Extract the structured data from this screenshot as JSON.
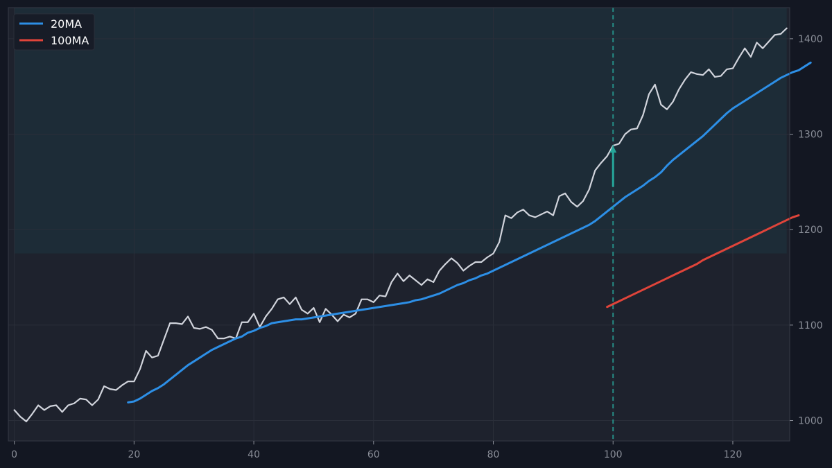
{
  "chart_data": {
    "type": "line",
    "title": "",
    "xlabel": "",
    "ylabel": "",
    "xlim": [
      -1,
      129.5
    ],
    "ylim": [
      978.6,
      1432.6
    ],
    "x_ticks": [
      0,
      20,
      40,
      60,
      80,
      100,
      120
    ],
    "y_ticks": [
      1000,
      1100,
      1200,
      1300,
      1400
    ],
    "y_axis_side": "right",
    "grid": true,
    "legend": {
      "position": "top-left",
      "entries": [
        "20MA",
        "100MA"
      ]
    },
    "colors": {
      "background": "#131722",
      "plot_background": "#1e222d",
      "grid": "#2a2e39",
      "price": "#d1d4dc",
      "ma20": "#2d8fe6",
      "ma100": "#e0443a",
      "crossover_marker": "#26a69a",
      "shaded_zone": "#1c3a44"
    },
    "shaded_region": {
      "x": [
        0,
        129
      ],
      "y_from": 1175,
      "y_to": 1432.6
    },
    "vertical_marker": {
      "x": 100,
      "style": "dashed"
    },
    "arrow": {
      "x": 100,
      "y_from": 1245,
      "y_to": 1288
    },
    "series": [
      {
        "name": "",
        "role": "price",
        "x_start": 0,
        "values": [
          1011,
          1004,
          999,
          1007,
          1016,
          1011,
          1015,
          1016,
          1009,
          1016,
          1018,
          1023,
          1022,
          1016,
          1022,
          1036,
          1033,
          1032,
          1037,
          1041,
          1041,
          1054,
          1073,
          1066,
          1068,
          1085,
          1102,
          1102,
          1101,
          1109,
          1097,
          1096,
          1098,
          1095,
          1086,
          1086,
          1088,
          1086,
          1103,
          1103,
          1112,
          1098,
          1109,
          1117,
          1127,
          1129,
          1122,
          1129,
          1116,
          1112,
          1118,
          1103,
          1117,
          1111,
          1104,
          1111,
          1108,
          1112,
          1127,
          1127,
          1124,
          1131,
          1130,
          1145,
          1154,
          1146,
          1152,
          1147,
          1142,
          1148,
          1145,
          1157,
          1164,
          1170,
          1165,
          1157,
          1162,
          1166,
          1166,
          1171,
          1175,
          1187,
          1215,
          1212,
          1218,
          1221,
          1215,
          1213,
          1216,
          1219,
          1215,
          1235,
          1238,
          1229,
          1224,
          1230,
          1242,
          1262,
          1270,
          1277,
          1288,
          1290,
          1300,
          1305,
          1306,
          1320,
          1342,
          1352,
          1331,
          1326,
          1334,
          1347,
          1357,
          1365,
          1363,
          1362,
          1368,
          1360,
          1361,
          1368,
          1369,
          1380,
          1390,
          1381,
          1396,
          1390,
          1397,
          1404,
          1405,
          1411
        ]
      },
      {
        "name": "20MA",
        "role": "ma20",
        "x_start": 19,
        "values": [
          1019,
          1020,
          1023,
          1027,
          1031,
          1034,
          1038,
          1043,
          1048,
          1053,
          1058,
          1062,
          1066,
          1070,
          1074,
          1077,
          1080,
          1083,
          1086,
          1088,
          1092,
          1094,
          1097,
          1099,
          1102,
          1103,
          1104,
          1105,
          1106,
          1106,
          1107,
          1108,
          1109,
          1110,
          1111,
          1112,
          1113,
          1114,
          1115,
          1116,
          1117,
          1118,
          1119,
          1120,
          1121,
          1122,
          1123,
          1124,
          1126,
          1127,
          1129,
          1131,
          1133,
          1136,
          1139,
          1142,
          1144,
          1147,
          1149,
          1152,
          1154,
          1157,
          1160,
          1163,
          1166,
          1169,
          1172,
          1175,
          1178,
          1181,
          1184,
          1187,
          1190,
          1193,
          1196,
          1199,
          1202,
          1205,
          1209,
          1214,
          1219,
          1224,
          1229,
          1234,
          1238,
          1242,
          1246,
          1251,
          1255,
          1260,
          1267,
          1273,
          1278,
          1283,
          1288,
          1293,
          1298,
          1304,
          1310,
          1316,
          1322,
          1327,
          1331,
          1335,
          1339,
          1343,
          1347,
          1351,
          1355,
          1359,
          1362,
          1365,
          1367,
          1371,
          1375
        ]
      },
      {
        "name": "100MA",
        "role": "ma100",
        "x_start": 99,
        "values": [
          1119,
          1122,
          1125,
          1128,
          1131,
          1134,
          1137,
          1140,
          1143,
          1146,
          1149,
          1152,
          1155,
          1158,
          1161,
          1164,
          1168,
          1171,
          1174,
          1177,
          1180,
          1183,
          1186,
          1189,
          1192,
          1195,
          1198,
          1201,
          1204,
          1207,
          1210,
          1213,
          1215
        ]
      }
    ]
  }
}
